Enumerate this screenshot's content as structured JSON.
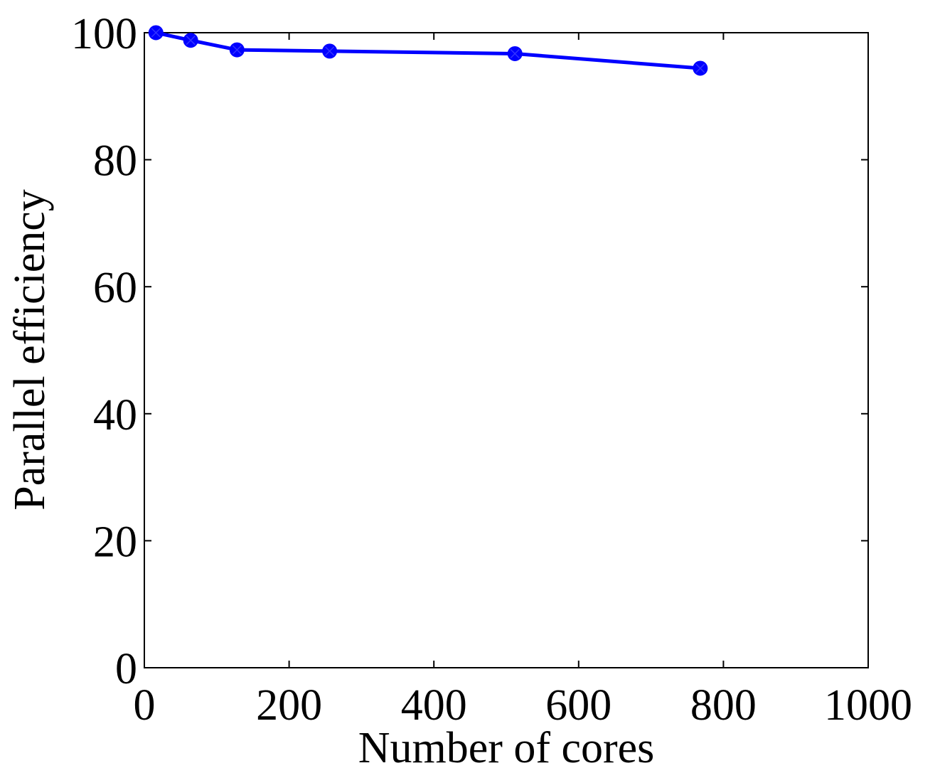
{
  "chart_data": {
    "type": "line",
    "xlabel": "Number of cores",
    "ylabel": "Parallel efficiency",
    "xlim": [
      0,
      1000
    ],
    "ylim": [
      0,
      100
    ],
    "xticks": [
      0,
      200,
      400,
      600,
      800,
      1000
    ],
    "yticks": [
      0,
      20,
      40,
      60,
      80,
      100
    ],
    "xtick_labels": [
      "0",
      "200",
      "400",
      "600",
      "800",
      "1000"
    ],
    "ytick_labels": [
      "0",
      "20",
      "40",
      "60",
      "80",
      "100"
    ],
    "grid": false,
    "series": [
      {
        "x": [
          16,
          64,
          128,
          256,
          512,
          768
        ],
        "y": [
          100,
          98.8,
          97.3,
          97.1,
          96.7,
          94.4
        ],
        "color": "#0000ff",
        "marker": "circle"
      }
    ]
  }
}
